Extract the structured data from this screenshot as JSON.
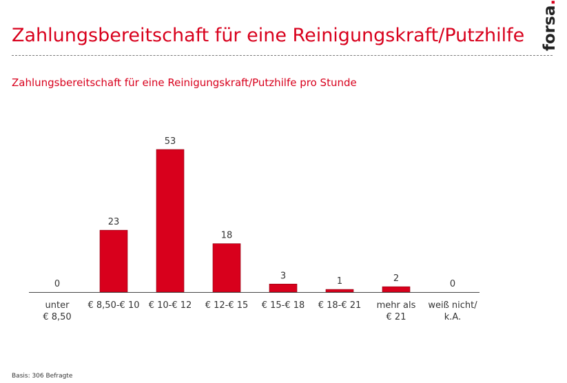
{
  "header": {
    "title": "Zahlungsbereitschaft für eine Reinigungskraft/Putzhilfe",
    "logo_text": "forsa",
    "logo_dot": "."
  },
  "subtitle": "Zahlungsbereitschaft für eine Reinigungskraft/Putzhilfe pro Stunde",
  "footer": "Basis: 306 Befragte",
  "colors": {
    "bar": "#d8001c",
    "accent": "#d8001c",
    "text": "#333333"
  },
  "chart_data": {
    "type": "bar",
    "title": "Zahlungsbereitschaft für eine Reinigungskraft/Putzhilfe pro Stunde",
    "categories": [
      [
        "unter",
        "€ 8,50"
      ],
      [
        "€ 8,50-€ 10"
      ],
      [
        "€ 10-€ 12"
      ],
      [
        "€ 12-€ 15"
      ],
      [
        "€ 15-€ 18"
      ],
      [
        "€ 18-€ 21"
      ],
      [
        "mehr als",
        "€ 21"
      ],
      [
        "weiß nicht/",
        "k.A."
      ]
    ],
    "values": [
      0,
      23,
      53,
      18,
      3,
      1,
      2,
      0
    ],
    "ylim": [
      0,
      53
    ],
    "grid": false,
    "legend": "none"
  }
}
